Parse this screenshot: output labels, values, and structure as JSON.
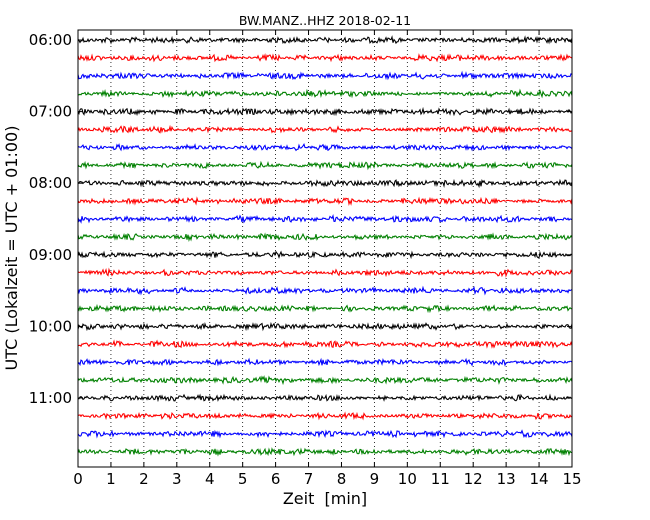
{
  "chart_data": {
    "type": "line",
    "title": "BW.MANZ..HHZ 2018-02-11",
    "xlabel": "Zeit  [min]",
    "ylabel": "UTC (Lokalzeit = UTC + 01:00)",
    "xlim": [
      0,
      15
    ],
    "x_ticks": [
      "0",
      "1",
      "2",
      "3",
      "4",
      "5",
      "6",
      "7",
      "8",
      "9",
      "10",
      "11",
      "12",
      "13",
      "14",
      "15"
    ],
    "y_ticks": [
      "06:00",
      "07:00",
      "08:00",
      "09:00",
      "10:00",
      "11:00"
    ],
    "row_start": "06:00",
    "row_end": "11:45",
    "row_interval_min": 15,
    "row_count": 24,
    "color_cycle": [
      "#000000",
      "#ff0000",
      "#0000ff",
      "#008000"
    ],
    "grid": "vertical dotted at each minute",
    "series_description": "Continuous seismic noise trace, one 15-minute row per line"
  }
}
